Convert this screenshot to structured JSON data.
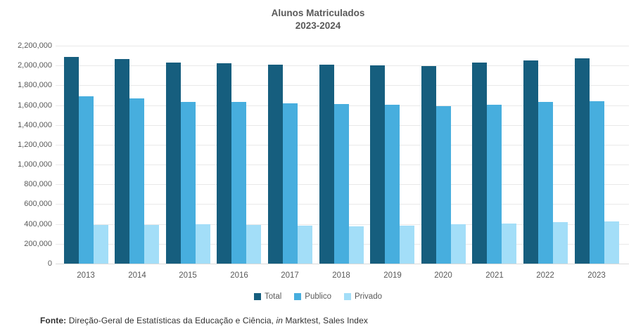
{
  "chart": {
    "title_line1": "Alunos Matriculados",
    "title_line2": "2023-2024"
  },
  "chart_data": {
    "type": "bar",
    "title": "Alunos Matriculados 2023-2024",
    "categories": [
      "2013",
      "2014",
      "2015",
      "2016",
      "2017",
      "2018",
      "2019",
      "2020",
      "2021",
      "2022",
      "2023"
    ],
    "series": [
      {
        "name": "Total",
        "color": "#165E7E",
        "values": [
          2085000,
          2066000,
          2028000,
          2021000,
          2008000,
          2007000,
          2000000,
          1993000,
          2028000,
          2054000,
          2070000
        ]
      },
      {
        "name": "Publico",
        "color": "#47AEDE",
        "values": [
          1688000,
          1670000,
          1630000,
          1629000,
          1621000,
          1611000,
          1607000,
          1587000,
          1607000,
          1629000,
          1637000
        ]
      },
      {
        "name": "Privado",
        "color": "#A3DEF8",
        "values": [
          390000,
          390000,
          394000,
          390000,
          384000,
          377000,
          385000,
          395000,
          408000,
          422000,
          423000
        ]
      }
    ],
    "xlabel": "",
    "ylabel": "",
    "ylim": [
      0,
      2200000
    ],
    "y_tick_step": 200000,
    "y_tick_labels": [
      "0",
      "200,000",
      "400,000",
      "600,000",
      "800,000",
      "1,000,000",
      "1,200,000",
      "1,400,000",
      "1,600,000",
      "1,800,000",
      "2,000,000",
      "2,200,000"
    ],
    "grid": true,
    "legend_position": "bottom",
    "legend_labels": [
      "Total",
      "Publico",
      "Privado"
    ]
  },
  "footer": {
    "bold": "Fonte:",
    "text1": " Direção-Geral de Estatísticas da Educação e Ciência, ",
    "italic": "in",
    "text2": " Marktest, Sales Index"
  },
  "colors": {
    "total": "#165E7E",
    "publico": "#47AEDE",
    "privado": "#A3DEF8",
    "gridline": "#E9E9E9",
    "axis_line": "#D9D9D9",
    "label_text": "#595959"
  }
}
